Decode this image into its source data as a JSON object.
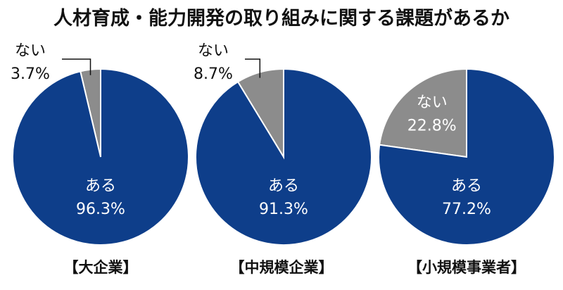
{
  "title": "人材育成・能力開発の取り組みに関する課題があるか",
  "colors": {
    "yes": "#0e3e8a",
    "no": "#8c8c8c",
    "leader": "#111111"
  },
  "chart_data": [
    {
      "type": "pie",
      "caption": "【大企業】",
      "slices": [
        {
          "label": "ある",
          "value": 96.3,
          "value_label": "96.3%"
        },
        {
          "label": "ない",
          "value": 3.7,
          "value_label": "3.7%"
        }
      ]
    },
    {
      "type": "pie",
      "caption": "【中規模企業】",
      "slices": [
        {
          "label": "ある",
          "value": 91.3,
          "value_label": "91.3%"
        },
        {
          "label": "ない",
          "value": 8.7,
          "value_label": "8.7%"
        }
      ]
    },
    {
      "type": "pie",
      "caption": "【小規模事業者】",
      "slices": [
        {
          "label": "ある",
          "value": 77.2,
          "value_label": "77.2%"
        },
        {
          "label": "ない",
          "value": 22.8,
          "value_label": "22.8%"
        }
      ]
    }
  ]
}
